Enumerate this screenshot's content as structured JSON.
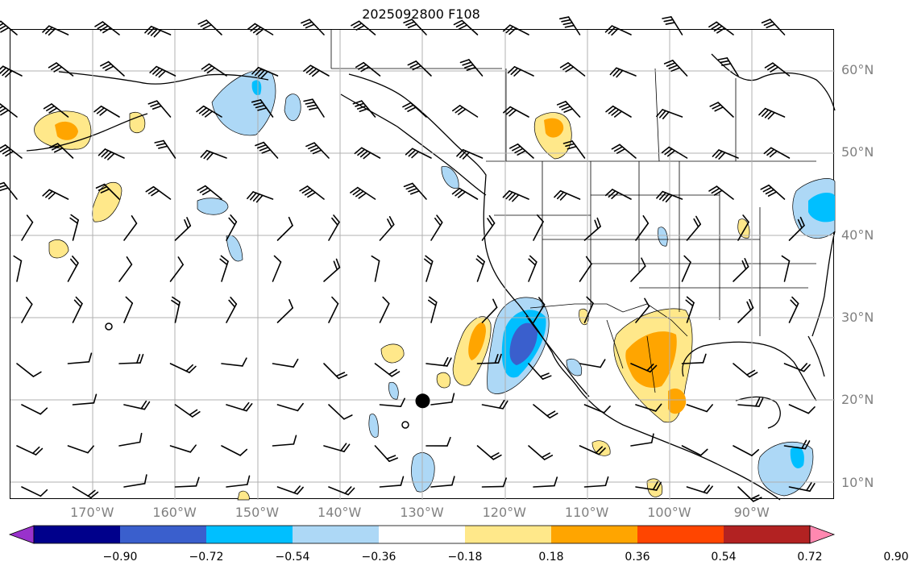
{
  "title": "2025092800 F108",
  "lat_labels": [
    {
      "deg": 60,
      "text": "60°N"
    },
    {
      "deg": 50,
      "text": "50°N"
    },
    {
      "deg": 40,
      "text": "40°N"
    },
    {
      "deg": 30,
      "text": "30°N"
    },
    {
      "deg": 20,
      "text": "20°N"
    },
    {
      "deg": 10,
      "text": "10°N"
    }
  ],
  "lon_labels": [
    {
      "deg": -170,
      "text": "170°W"
    },
    {
      "deg": -160,
      "text": "160°W"
    },
    {
      "deg": -150,
      "text": "150°W"
    },
    {
      "deg": -140,
      "text": "140°W"
    },
    {
      "deg": -130,
      "text": "130°W"
    },
    {
      "deg": -120,
      "text": "120°W"
    },
    {
      "deg": -110,
      "text": "110°W"
    },
    {
      "deg": -100,
      "text": "100°W"
    },
    {
      "deg": -90,
      "text": "90°W"
    }
  ],
  "colorbar": {
    "ticks": [
      "−0.90",
      "−0.72",
      "−0.54",
      "−0.36",
      "−0.18",
      "0.18",
      "0.36",
      "0.54",
      "0.72",
      "0.90"
    ],
    "colors": [
      "#9932cc",
      "#00008b",
      "#3a5fcd",
      "#00bfff",
      "#add8f6",
      "#ffffff",
      "#ffe88a",
      "#ffa500",
      "#ff4500",
      "#b22222",
      "#ff88b0"
    ]
  },
  "map": {
    "extent": {
      "lon_min": -180,
      "lon_max": -80,
      "lat_min": 8,
      "lat_max": 65
    },
    "marker_point": {
      "lon": -130,
      "lat": 20
    }
  }
}
